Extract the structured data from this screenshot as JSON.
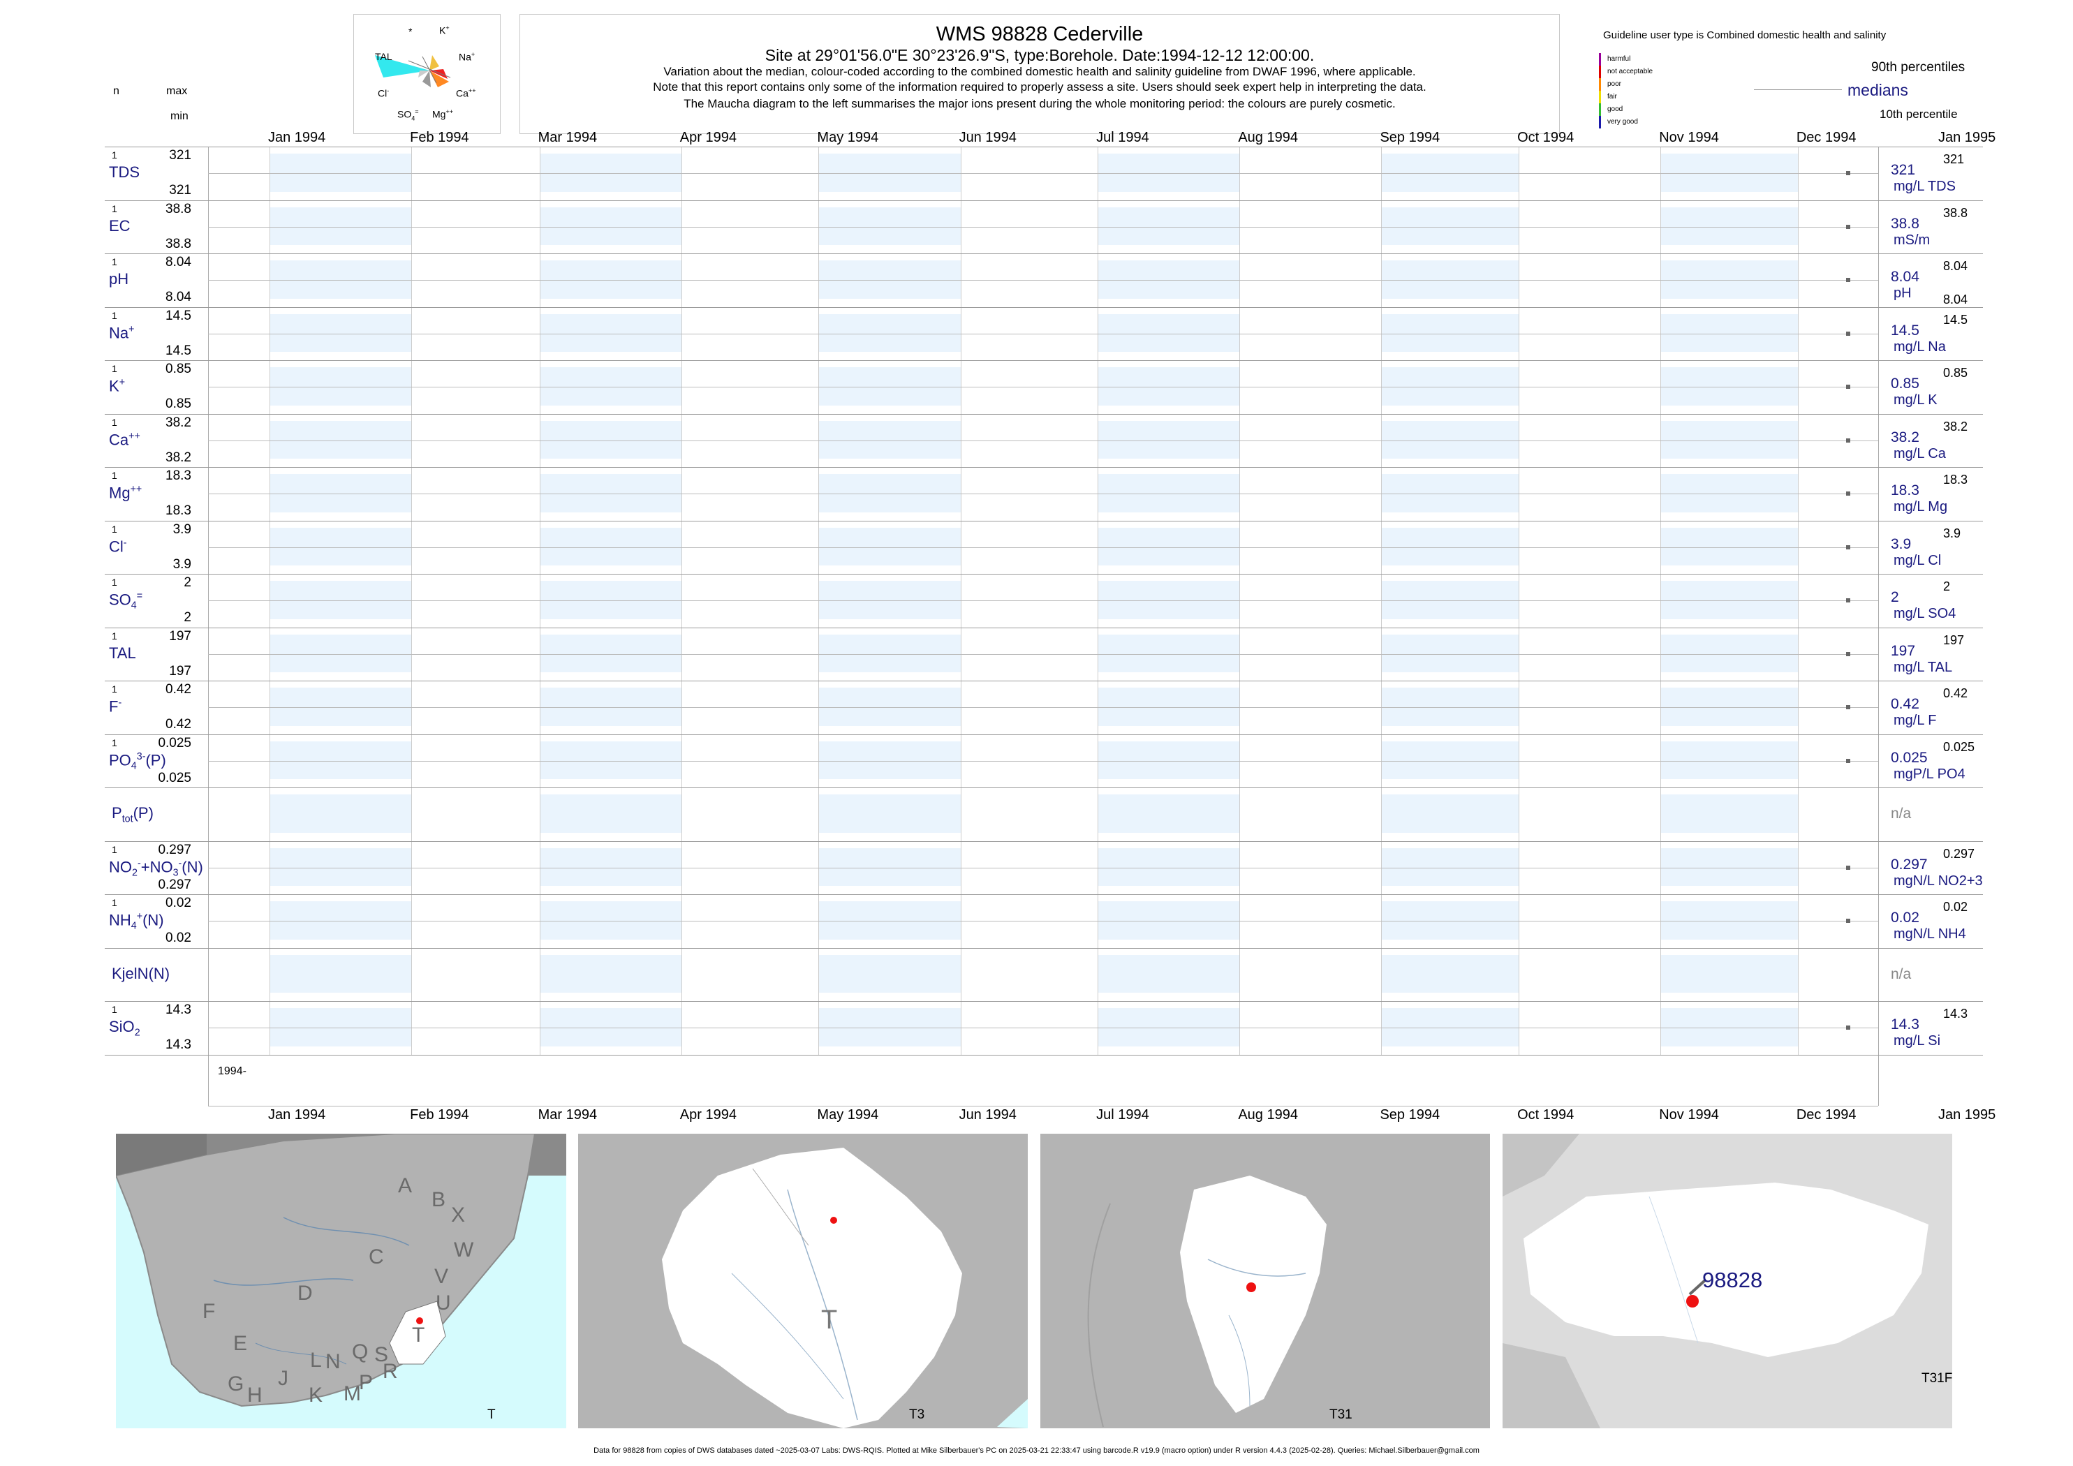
{
  "header": {
    "title": "WMS 98828  Cederville",
    "subtitle": "Site at 29°01'56.0\"E 30°23'26.9\"S, type:Borehole. Date:1994-12-12 12:00:00.",
    "note1": "Variation about the median,  colour-coded according to the combined domestic health and salinity guideline from DWAF 1996, where applicable.",
    "note2": "Note that this report contains only some of the information required to properly assess a site. Users should seek expert help in interpreting the data.",
    "note3": "The Maucha diagram to the left summarises the major ions present during the whole monitoring period: the colours are purely cosmetic."
  },
  "left_header": {
    "n": "n",
    "max": "max",
    "min": "min"
  },
  "maucha": {
    "labels": {
      "star": "*",
      "k": "K",
      "tal": "TAL",
      "na": "Na",
      "cl": "Cl",
      "ca": "Ca",
      "so4": "SO",
      "mg": "Mg"
    }
  },
  "legend": {
    "guideline": "Guideline user type is Combined domestic health and salinity",
    "categories": [
      {
        "label": "harmful",
        "color": "#990099"
      },
      {
        "label": "not acceptable",
        "color": "#dd0000"
      },
      {
        "label": "poor",
        "color": "#ff8800"
      },
      {
        "label": "fair",
        "color": "#eedd00"
      },
      {
        "label": "good",
        "color": "#33bb33"
      },
      {
        "label": "very good",
        "color": "#1a1aaa"
      }
    ],
    "p90": "90th percentiles",
    "medians": "medians",
    "p10": "10th percentile"
  },
  "chart_data": {
    "type": "scatter",
    "x_axis": {
      "ticks": [
        "Jan 1994",
        "Feb 1994",
        "Mar 1994",
        "Apr 1994",
        "May 1994",
        "Jun 1994",
        "Jul 1994",
        "Aug 1994",
        "Sep 1994",
        "Oct 1994",
        "Nov 1994",
        "Dec 1994",
        "Jan 1995"
      ],
      "bottom_label": "1994-",
      "range": [
        "1994-01-01",
        "1995-01-01"
      ]
    },
    "sample_date": "1994-12-12",
    "rows": [
      {
        "label": "TDS",
        "n": "1",
        "max": "321",
        "min": "321",
        "median": "321",
        "unit": "mg/L TDS",
        "p90": "321",
        "p10": "",
        "value": 321
      },
      {
        "label": "EC",
        "n": "1",
        "max": "38.8",
        "min": "38.8",
        "median": "38.8",
        "unit": "mS/m",
        "p90": "38.8",
        "p10": "",
        "value": 38.8
      },
      {
        "label": "pH",
        "n": "1",
        "max": "8.04",
        "min": "8.04",
        "median": "8.04",
        "unit": "pH",
        "p90": "8.04",
        "p10": "8.04",
        "value": 8.04
      },
      {
        "label": "Na",
        "n": "1",
        "max": "14.5",
        "min": "14.5",
        "median": "14.5",
        "unit": "mg/L Na",
        "p90": "14.5",
        "p10": "",
        "value": 14.5
      },
      {
        "label": "K",
        "n": "1",
        "max": "0.85",
        "min": "0.85",
        "median": "0.85",
        "unit": "mg/L K",
        "p90": "0.85",
        "p10": "",
        "value": 0.85
      },
      {
        "label": "Ca",
        "n": "1",
        "max": "38.2",
        "min": "38.2",
        "median": "38.2",
        "unit": "mg/L Ca",
        "p90": "38.2",
        "p10": "",
        "value": 38.2
      },
      {
        "label": "Mg",
        "n": "1",
        "max": "18.3",
        "min": "18.3",
        "median": "18.3",
        "unit": "mg/L Mg",
        "p90": "18.3",
        "p10": "",
        "value": 18.3
      },
      {
        "label": "Cl",
        "n": "1",
        "max": "3.9",
        "min": "3.9",
        "median": "3.9",
        "unit": "mg/L Cl",
        "p90": "3.9",
        "p10": "",
        "value": 3.9
      },
      {
        "label": "SO",
        "n": "1",
        "max": "2",
        "min": "2",
        "median": "2",
        "unit": "mg/L SO4",
        "p90": "2",
        "p10": "",
        "value": 2
      },
      {
        "label": "TAL",
        "n": "1",
        "max": "197",
        "min": "197",
        "median": "197",
        "unit": "mg/L TAL",
        "p90": "197",
        "p10": "",
        "value": 197
      },
      {
        "label": "F",
        "n": "1",
        "max": "0.42",
        "min": "0.42",
        "median": "0.42",
        "unit": "mg/L F",
        "p90": "0.42",
        "p10": "",
        "value": 0.42
      },
      {
        "label": "PO",
        "n": "1",
        "max": "0.025",
        "min": "0.025",
        "median": "0.025",
        "unit": "mgP/L PO4",
        "p90": "0.025",
        "p10": "",
        "value": 0.025
      },
      {
        "label": "P",
        "n": "",
        "max": "",
        "min": "",
        "median": "n/a",
        "unit": "",
        "p90": "",
        "p10": "",
        "value": null
      },
      {
        "label": "NO",
        "n": "1",
        "max": "0.297",
        "min": "0.297",
        "median": "0.297",
        "unit": "mgN/L NO2+3",
        "p90": "0.297",
        "p10": "",
        "value": 0.297
      },
      {
        "label": "NH",
        "n": "1",
        "max": "0.02",
        "min": "0.02",
        "median": "0.02",
        "unit": "mgN/L NH4",
        "p90": "0.02",
        "p10": "",
        "value": 0.02
      },
      {
        "label": "KjelN(N)",
        "n": "",
        "max": "",
        "min": "",
        "median": "n/a",
        "unit": "",
        "p90": "",
        "p10": "",
        "value": null
      },
      {
        "label": "SiO",
        "n": "1",
        "max": "14.3",
        "min": "14.3",
        "median": "14.3",
        "unit": "mg/L Si",
        "p90": "14.3",
        "p10": "",
        "value": 14.3
      }
    ]
  },
  "maps": {
    "map1": {
      "label": "T",
      "regions": [
        "A",
        "B",
        "X",
        "W",
        "C",
        "V",
        "D",
        "U",
        "T",
        "F",
        "E",
        "L",
        "N",
        "Q",
        "S",
        "R",
        "J",
        "P",
        "M",
        "K",
        "G",
        "H"
      ]
    },
    "map2": {
      "label": "T3",
      "region": "T"
    },
    "map3": {
      "label": "T31"
    },
    "map4": {
      "label": "T31F",
      "site": "98828"
    }
  },
  "footer": "Data for 98828 from copies of DWS databases dated ~2025-03-07 Labs: DWS-RQIS. Plotted at Mike Silberbauer's PC on 2025-03-21 22:33:47 using barcode.R v19.9 (macro option) under R version 4.4.3 (2025-02-28). Queries: Michael.Silberbauer@gmail.com",
  "colors": {
    "navy": "#1a1a80",
    "band": "#eaf4fd",
    "sea": "#d5fbfd",
    "land": "#b4b4b4",
    "catchment": "#ffffff",
    "site": "#ee1111"
  }
}
